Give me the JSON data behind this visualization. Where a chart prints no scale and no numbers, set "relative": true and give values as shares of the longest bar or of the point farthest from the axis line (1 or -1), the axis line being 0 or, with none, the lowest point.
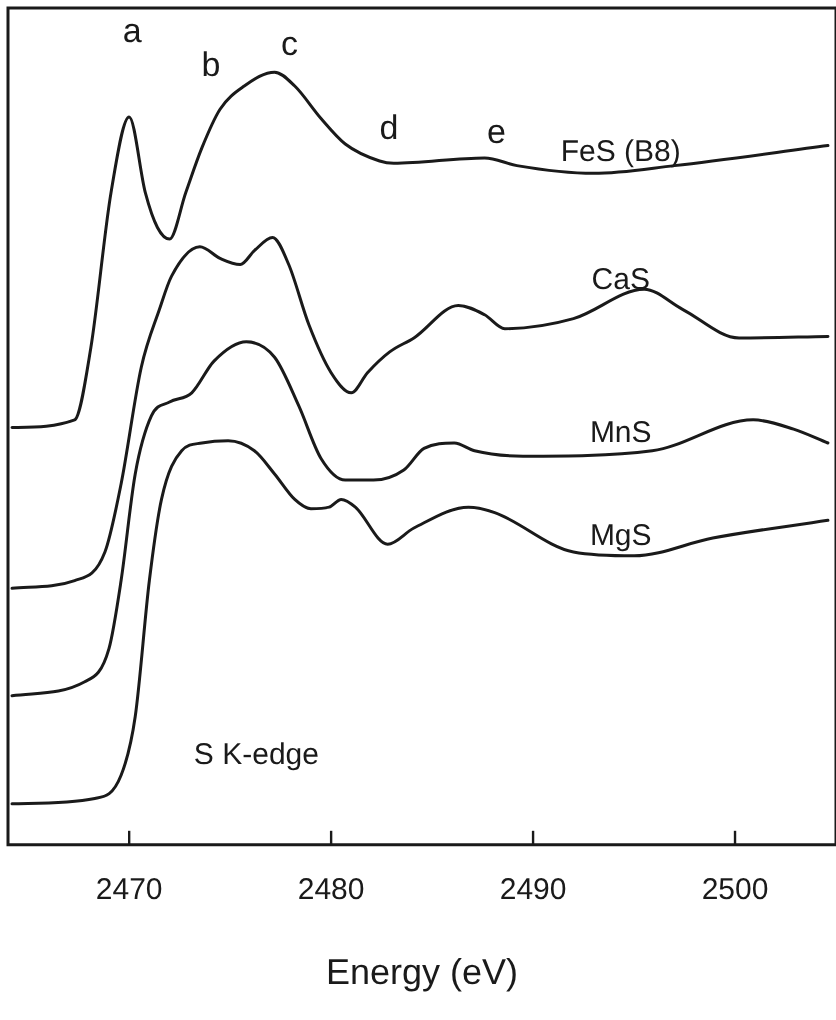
{
  "chart_data": {
    "type": "line",
    "relative": true,
    "xlabel": "Energy (eV)",
    "xlim": [
      2464,
      2505
    ],
    "xticks": [
      2470,
      2480,
      2490,
      2500
    ],
    "grid": false,
    "legend": false,
    "marker": "none",
    "line_style": "solid",
    "annotations": [
      "a",
      "b",
      "c",
      "d",
      "e",
      "S K-edge"
    ],
    "series": [
      {
        "name": "FeS (B8)",
        "color": "#1a1a1a",
        "x": [
          2464.2,
          2467.3,
          2468.1,
          2469.1,
          2470.0,
          2470.8,
          2471.4,
          2472.0,
          2472.8,
          2473.6,
          2474.5,
          2475.7,
          2477.2,
          2478.2,
          2479.5,
          2480.7,
          2482.4,
          2483.1,
          2487.6,
          2489.2,
          2493.0,
          2497.0,
          2504.6
        ],
        "values": [
          0.54,
          0.55,
          0.643,
          0.844,
          0.942,
          0.844,
          0.799,
          0.784,
          0.844,
          0.902,
          0.952,
          0.982,
          1,
          0.982,
          0.94,
          0.907,
          0.885,
          0.882,
          0.889,
          0.879,
          0.869,
          0.879,
          0.905
        ]
      },
      {
        "name": "CaS",
        "color": "#1a1a1a",
        "x": [
          2464.2,
          2467.3,
          2468.8,
          2469.6,
          2470.6,
          2471.5,
          2472.1,
          2473.5,
          2474.5,
          2475.5,
          2476.2,
          2477.1,
          2477.9,
          2478.9,
          2480.0,
          2481.0,
          2481.8,
          2482.9,
          2484.1,
          2486.3,
          2487.6,
          2488.6,
          2492.0,
          2495.5,
          2497.4,
          2500.2,
          2504.6
        ],
        "values": [
          0.332,
          0.342,
          0.379,
          0.467,
          0.618,
          0.693,
          0.736,
          0.774,
          0.759,
          0.751,
          0.769,
          0.786,
          0.751,
          0.673,
          0.611,
          0.585,
          0.611,
          0.638,
          0.656,
          0.698,
          0.686,
          0.668,
          0.681,
          0.719,
          0.693,
          0.656,
          0.658
        ]
      },
      {
        "name": "MnS",
        "color": "#1a1a1a",
        "x": [
          2464.2,
          2467.8,
          2469.0,
          2469.6,
          2470.3,
          2471.1,
          2472.0,
          2473.1,
          2474.2,
          2475.8,
          2477.2,
          2478.4,
          2479.5,
          2480.7,
          2482.1,
          2483.6,
          2484.6,
          2486.1,
          2487.1,
          2489.5,
          2495.9,
          2500.9,
          2502.9,
          2504.6
        ],
        "values": [
          0.193,
          0.211,
          0.254,
          0.342,
          0.48,
          0.555,
          0.573,
          0.585,
          0.626,
          0.651,
          0.631,
          0.568,
          0.5,
          0.472,
          0.472,
          0.485,
          0.513,
          0.52,
          0.51,
          0.503,
          0.51,
          0.55,
          0.538,
          0.52
        ]
      },
      {
        "name": "MgS",
        "color": "#1a1a1a",
        "x": [
          2464.2,
          2468.3,
          2469.6,
          2470.3,
          2471.0,
          2471.6,
          2472.6,
          2473.6,
          2474.9,
          2476.2,
          2477.2,
          2478.2,
          2479.0,
          2479.9,
          2480.5,
          2481.2,
          2482.8,
          2484.1,
          2486.8,
          2488.1,
          2492.0,
          2495.0,
          2498.9,
          2504.6
        ],
        "values": [
          0.053,
          0.06,
          0.09,
          0.166,
          0.342,
          0.447,
          0.51,
          0.52,
          0.523,
          0.51,
          0.48,
          0.447,
          0.435,
          0.437,
          0.447,
          0.437,
          0.389,
          0.41,
          0.437,
          0.43,
          0.379,
          0.374,
          0.397,
          0.42
        ]
      }
    ]
  }
}
